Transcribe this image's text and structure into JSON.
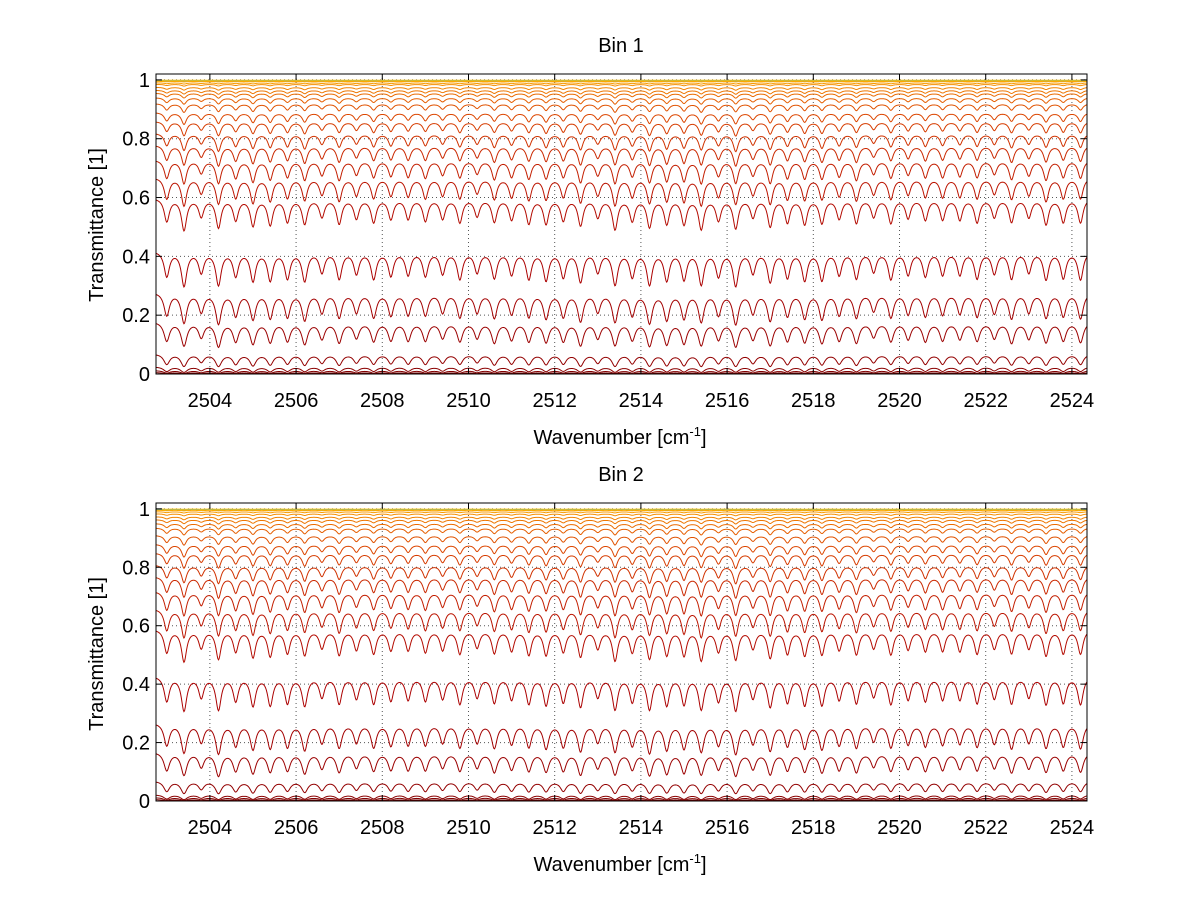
{
  "chart_data": [
    {
      "type": "line",
      "title": "Bin 1",
      "xlabel": "Wavenumber [cm",
      "xlabel_sup": "-1",
      "xlabel_close": "]",
      "ylabel": "Transmittance [1]",
      "xlim": [
        2502.75,
        2524.35
      ],
      "ylim": [
        0,
        1.02
      ],
      "xticks": [
        2504,
        2506,
        2508,
        2510,
        2512,
        2514,
        2516,
        2518,
        2520,
        2522,
        2524
      ],
      "xtick_labels": [
        "2504",
        "2506",
        "2508",
        "2510",
        "2512",
        "2514",
        "2516",
        "2518",
        "2520",
        "2522",
        "2524"
      ],
      "yticks": [
        0,
        0.2,
        0.4,
        0.6,
        0.8,
        1
      ],
      "ytick_labels": [
        "0",
        "0.2",
        "0.4",
        "0.6",
        "0.8",
        "1"
      ],
      "grid": true,
      "legend": false,
      "line_pitch_cm1": 0.4,
      "line_center_offset_cm1": 0.25,
      "series_baselines": [
        0.005,
        0.012,
        0.025,
        0.07,
        0.18,
        0.28,
        0.42,
        0.6,
        0.67,
        0.73,
        0.78,
        0.82,
        0.86,
        0.89,
        0.92,
        0.94,
        0.955,
        0.965,
        0.975,
        0.985,
        0.99,
        0.995,
        0.997,
        0.998,
        0.999
      ],
      "series_colors": [
        "#7a0000",
        "#820000",
        "#8a0000",
        "#930000",
        "#9b0000",
        "#a30000",
        "#ab0000",
        "#b30a00",
        "#bb1400",
        "#c31e00",
        "#ca2800",
        "#d03200",
        "#d63c00",
        "#dc4600",
        "#e05200",
        "#e55e00",
        "#ea6a00",
        "#ee7600",
        "#f28200",
        "#f58e00",
        "#f89a00",
        "#faa600",
        "#fcb200",
        "#43a6c6",
        "#ffc000"
      ]
    },
    {
      "type": "line",
      "title": "Bin 2",
      "xlabel": "Wavenumber [cm",
      "xlabel_sup": "-1",
      "xlabel_close": "]",
      "ylabel": "Transmittance [1]",
      "xlim": [
        2502.75,
        2524.35
      ],
      "ylim": [
        0,
        1.02
      ],
      "xticks": [
        2504,
        2506,
        2508,
        2510,
        2512,
        2514,
        2516,
        2518,
        2520,
        2522,
        2524
      ],
      "xtick_labels": [
        "2504",
        "2506",
        "2508",
        "2510",
        "2512",
        "2514",
        "2516",
        "2518",
        "2520",
        "2522",
        "2524"
      ],
      "yticks": [
        0,
        0.2,
        0.4,
        0.6,
        0.8,
        1
      ],
      "ytick_labels": [
        "0",
        "0.2",
        "0.4",
        "0.6",
        "0.8",
        "1"
      ],
      "grid": true,
      "legend": false,
      "line_pitch_cm1": 0.4,
      "line_center_offset_cm1": 0.25,
      "series_baselines": [
        0.005,
        0.012,
        0.022,
        0.07,
        0.17,
        0.27,
        0.43,
        0.59,
        0.66,
        0.72,
        0.77,
        0.81,
        0.85,
        0.88,
        0.91,
        0.935,
        0.95,
        0.963,
        0.973,
        0.983,
        0.99,
        0.995,
        0.997,
        0.998,
        0.999
      ],
      "series_colors": [
        "#7a0000",
        "#820000",
        "#8a0000",
        "#930000",
        "#9b0000",
        "#a30000",
        "#ab0000",
        "#b30a00",
        "#bb1400",
        "#c31e00",
        "#ca2800",
        "#d03200",
        "#d63c00",
        "#dc4600",
        "#e05200",
        "#e55e00",
        "#ea6a00",
        "#ee7600",
        "#f28200",
        "#f58e00",
        "#f89a00",
        "#faa600",
        "#fcb200",
        "#43a6c6",
        "#ffc000"
      ]
    }
  ]
}
